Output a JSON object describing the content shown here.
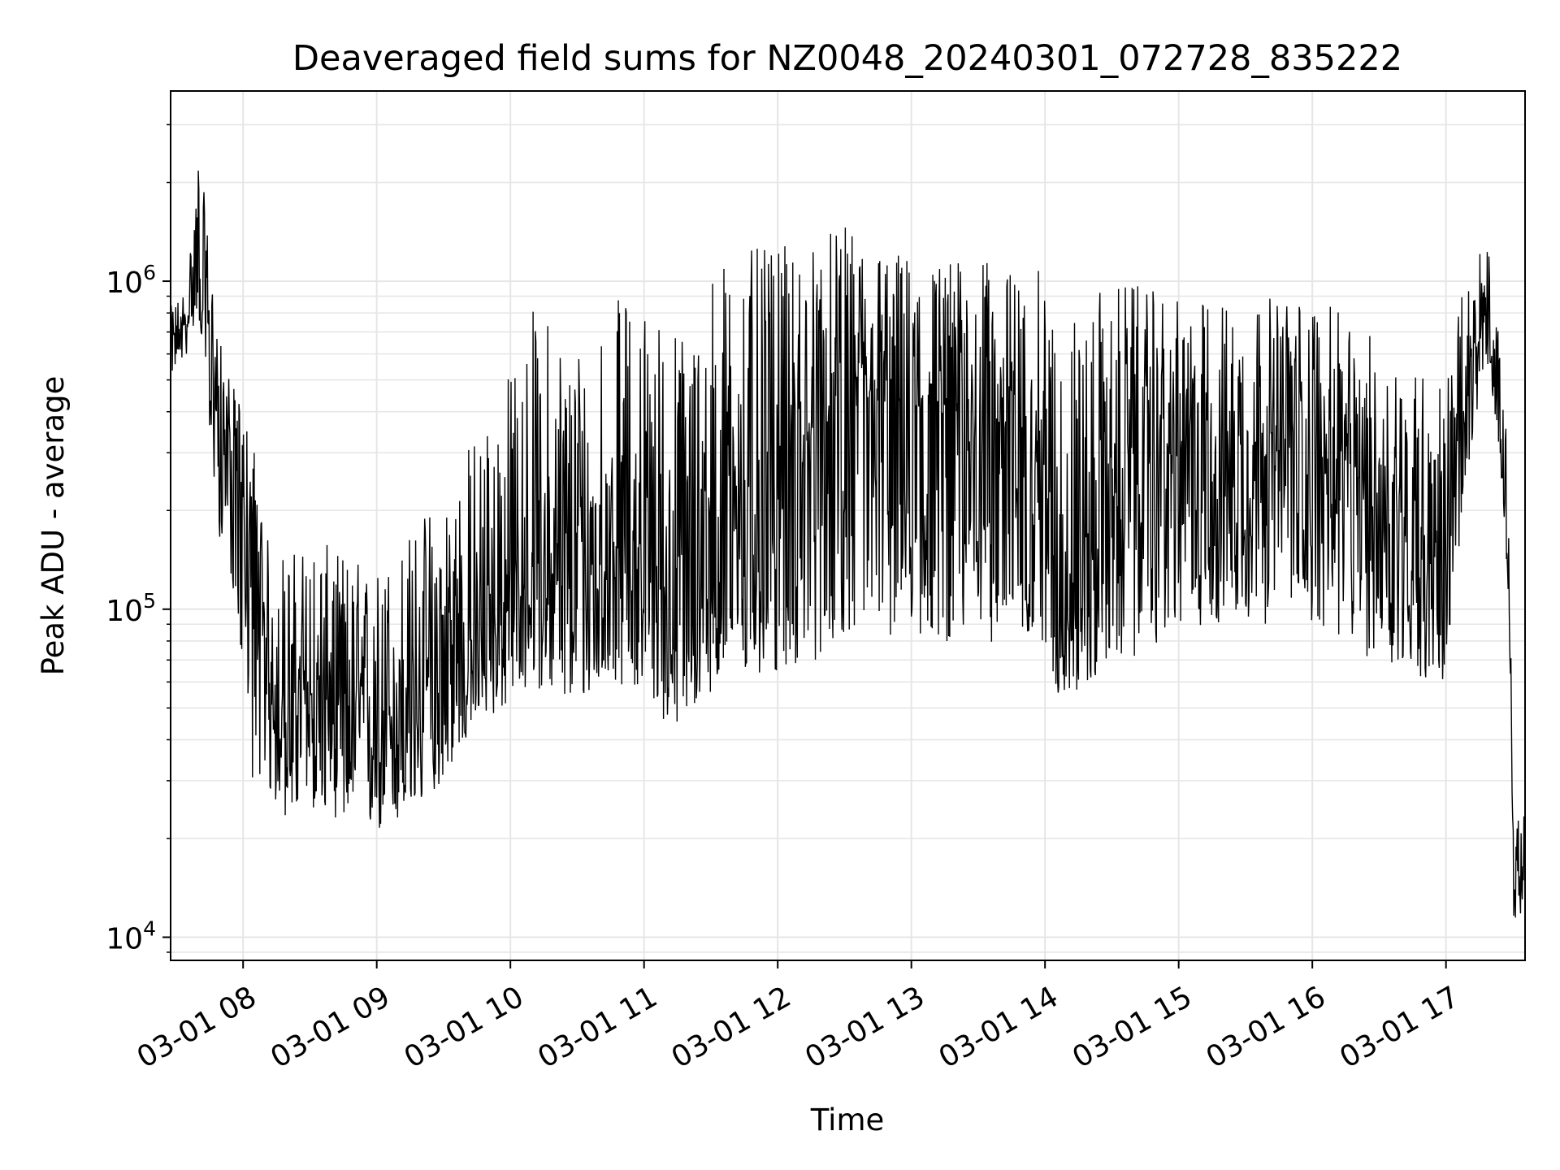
{
  "chart_data": {
    "type": "line",
    "title": "Deaveraged field sums for NZ0048_20240301_072728_835222",
    "xlabel": "Time",
    "ylabel": "Peak ADU - average",
    "x_is_datetime": true,
    "xlim": [
      "2024-03-01 07:27:28",
      "2024-03-01 17:35:30"
    ],
    "ylim": [
      8500,
      3800000
    ],
    "y_scale": "log",
    "x_tick_labels": [
      "03-01 08",
      "03-01 09",
      "03-01 10",
      "03-01 11",
      "03-01 12",
      "03-01 13",
      "03-01 14",
      "03-01 15",
      "03-01 16",
      "03-01 17"
    ],
    "x_tick_times": [
      "2024-03-01 08:00",
      "2024-03-01 09:00",
      "2024-03-01 10:00",
      "2024-03-01 11:00",
      "2024-03-01 12:00",
      "2024-03-01 13:00",
      "2024-03-01 14:00",
      "2024-03-01 15:00",
      "2024-03-01 16:00",
      "2024-03-01 17:00"
    ],
    "y_ticks": [
      {
        "value": 10000,
        "base": "10",
        "exp": "4"
      },
      {
        "value": 100000,
        "base": "10",
        "exp": "5"
      },
      {
        "value": 1000000,
        "base": "10",
        "exp": "6"
      }
    ],
    "grid": true,
    "line_color": "#000000",
    "grid_color": "#e6e6e6",
    "series": [
      {
        "x": [
          "2024-03-01 07:28",
          "2024-03-01 07:35",
          "2024-03-01 07:40",
          "2024-03-01 07:45",
          "2024-03-01 07:50",
          "2024-03-01 07:55",
          "2024-03-01 08:00",
          "2024-03-01 08:05",
          "2024-03-01 08:10",
          "2024-03-01 08:20",
          "2024-03-01 08:30",
          "2024-03-01 08:45",
          "2024-03-01 09:00",
          "2024-03-01 09:15",
          "2024-03-01 09:30",
          "2024-03-01 09:45",
          "2024-03-01 10:00",
          "2024-03-01 10:10",
          "2024-03-01 10:30",
          "2024-03-01 10:45",
          "2024-03-01 11:00",
          "2024-03-01 11:10",
          "2024-03-01 11:20",
          "2024-03-01 11:30",
          "2024-03-01 11:45",
          "2024-03-01 12:00",
          "2024-03-01 12:15",
          "2024-03-01 12:30",
          "2024-03-01 13:00",
          "2024-03-01 13:30",
          "2024-03-01 13:55",
          "2024-03-01 14:05",
          "2024-03-01 14:20",
          "2024-03-01 14:40",
          "2024-03-01 15:00",
          "2024-03-01 15:30",
          "2024-03-01 16:00",
          "2024-03-01 16:30",
          "2024-03-01 16:45",
          "2024-03-01 17:00",
          "2024-03-01 17:10",
          "2024-03-01 17:18",
          "2024-03-01 17:25",
          "2024-03-01 17:30",
          "2024-03-01 17:35"
        ],
        "y": [
          650000,
          750000,
          1300000,
          600000,
          380000,
          300000,
          200000,
          130000,
          60000,
          50000,
          55000,
          50000,
          45000,
          50000,
          60000,
          80000,
          100000,
          130000,
          110000,
          150000,
          160000,
          110000,
          95000,
          160000,
          230000,
          250000,
          330000,
          420000,
          400000,
          390000,
          320000,
          120000,
          140000,
          280000,
          290000,
          300000,
          300000,
          220000,
          180000,
          140000,
          400000,
          800000,
          300000,
          14000,
          15000
        ],
        "spread_low": [
          0.8,
          0.8,
          0.6,
          0.5,
          0.4,
          0.4,
          0.3,
          0.2,
          0.45,
          0.45,
          0.45,
          0.45,
          0.45,
          0.45,
          0.5,
          0.55,
          0.5,
          0.45,
          0.45,
          0.4,
          0.35,
          0.4,
          0.45,
          0.35,
          0.25,
          0.25,
          0.2,
          0.2,
          0.2,
          0.2,
          0.25,
          0.45,
          0.4,
          0.25,
          0.3,
          0.3,
          0.3,
          0.3,
          0.35,
          0.4,
          0.6,
          0.7,
          0.8,
          0.8,
          0.8
        ],
        "spread_high": [
          1.3,
          1.3,
          1.9,
          2.0,
          1.7,
          1.6,
          2.0,
          2.5,
          2.8,
          3.0,
          3.0,
          3.0,
          3.0,
          3.5,
          4.0,
          4.5,
          5.5,
          6.5,
          6.5,
          6.0,
          5.5,
          7.0,
          8.0,
          7.0,
          5.5,
          5.0,
          4.0,
          3.5,
          3.0,
          3.0,
          3.2,
          6.5,
          6.0,
          3.5,
          3.0,
          3.0,
          3.0,
          3.0,
          3.2,
          3.5,
          2.5,
          1.7,
          2.0,
          1.6,
          1.6
        ]
      }
    ]
  }
}
